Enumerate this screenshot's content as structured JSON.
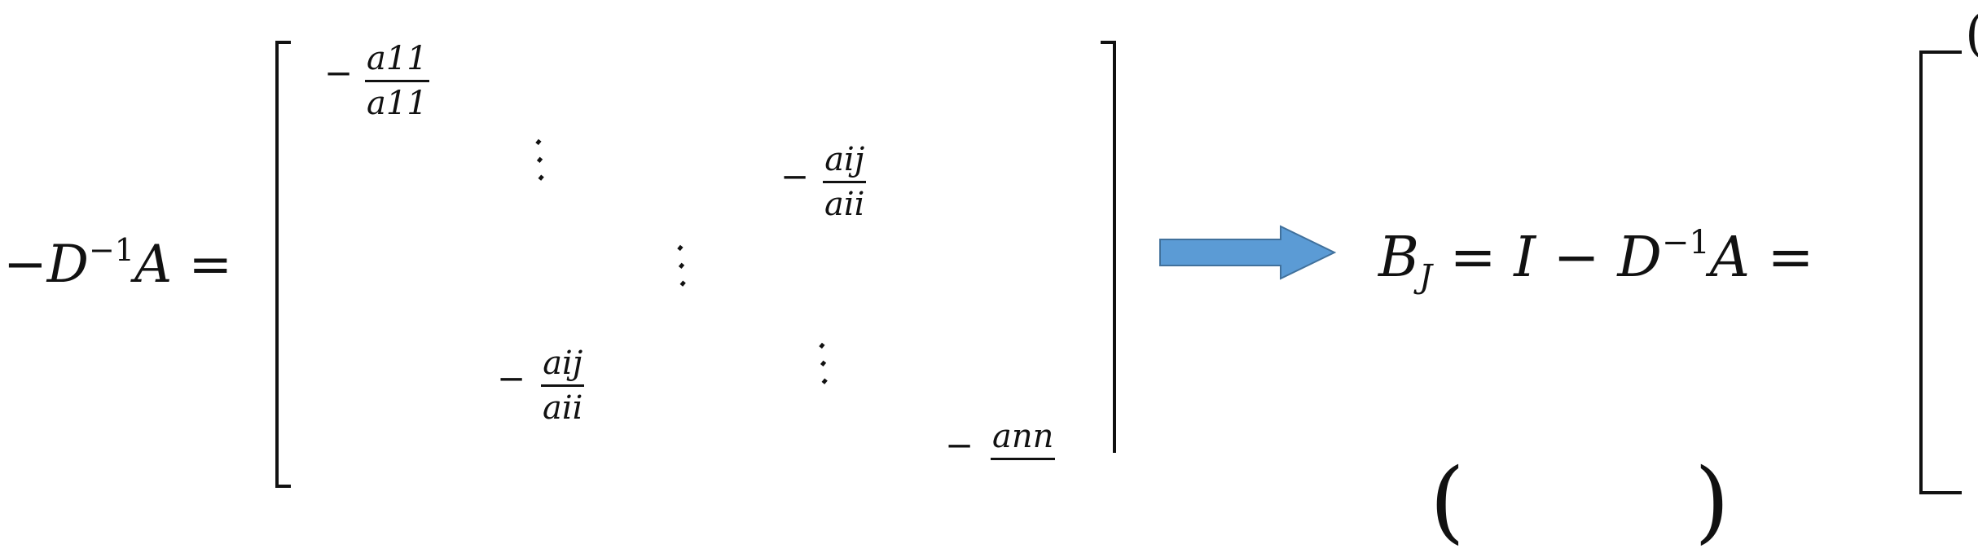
{
  "left_equation": {
    "lhs": "−D",
    "lhs_sup": "−1",
    "lhs_tail": "A =",
    "entries": {
      "a11": {
        "sign": "−",
        "num": "a11",
        "den": "a11"
      },
      "aij_upper": {
        "sign": "−",
        "num": "aij",
        "den": "aii"
      },
      "aij_lower": {
        "sign": "−",
        "num": "aij",
        "den": "aii"
      },
      "ann": {
        "sign": "−",
        "num": "ann"
      }
    },
    "ddots": "⋱"
  },
  "arrow_color": "#5b9bd5",
  "right_equation": {
    "b": "B",
    "b_sub": "J",
    "rest_a": "= I − D",
    "sup": "−1",
    "rest_b": "A ="
  },
  "partial_right_char": "(",
  "bottom_paren_left": "(",
  "bottom_paren_right": ")"
}
